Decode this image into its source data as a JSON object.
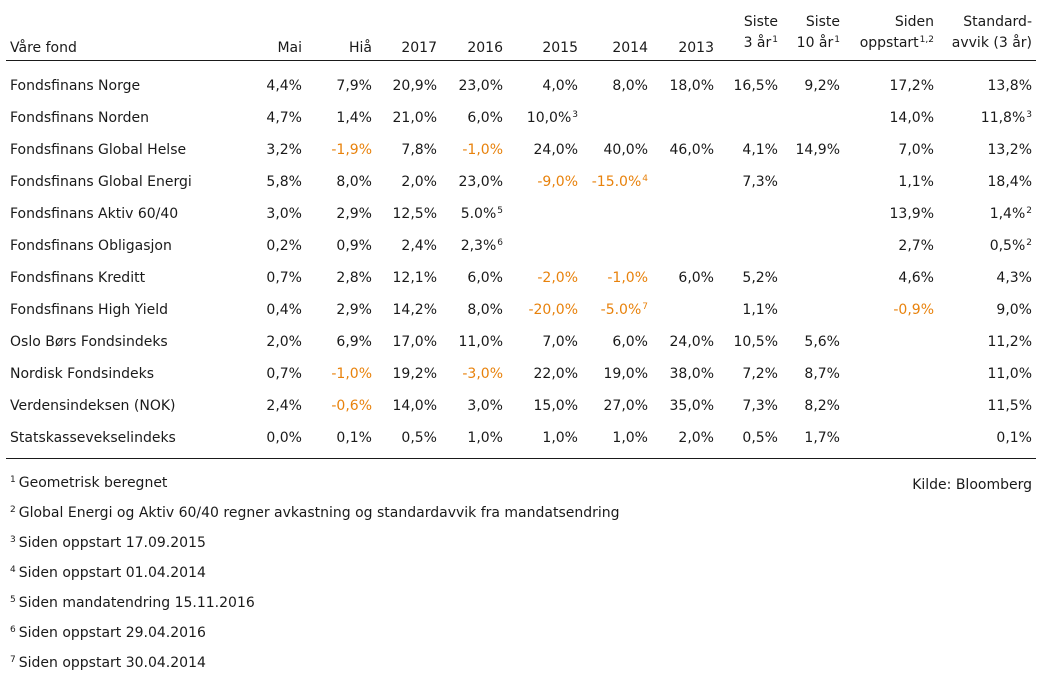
{
  "table": {
    "headers": {
      "name": "Våre fond",
      "mai": "Mai",
      "hia": "Hiå",
      "y2017": "2017",
      "y2016": "2016",
      "y2015": "2015",
      "y2014": "2014",
      "y2013": "2013",
      "siste3_l1": "Siste",
      "siste3_l2": "3 år",
      "siste3_sup": "1",
      "siste10_l1": "Siste",
      "siste10_l2": "10 år",
      "siste10_sup": "1",
      "siden_l1": "Siden",
      "siden_l2": "oppstart",
      "siden_sup": "1,2",
      "std_l1": "Standard-",
      "std_l2": "avvik (3 år)"
    },
    "rows": [
      {
        "name": "Fondsfinans Norge",
        "cells": [
          {
            "v": "4,4%"
          },
          {
            "v": "7,9%"
          },
          {
            "v": "20,9%"
          },
          {
            "v": "23,0%"
          },
          {
            "v": "4,0%"
          },
          {
            "v": "8,0%"
          },
          {
            "v": "18,0%"
          },
          {
            "v": "16,5%"
          },
          {
            "v": "9,2%"
          },
          {
            "v": "17,2%"
          },
          {
            "v": "13,8%"
          }
        ]
      },
      {
        "name": "Fondsfinans Norden",
        "cells": [
          {
            "v": "4,7%"
          },
          {
            "v": "1,4%"
          },
          {
            "v": "21,0%"
          },
          {
            "v": "6,0%"
          },
          {
            "v": "10,0%",
            "sup": "3"
          },
          {
            "v": ""
          },
          {
            "v": ""
          },
          {
            "v": ""
          },
          {
            "v": ""
          },
          {
            "v": "14,0%"
          },
          {
            "v": "11,8%",
            "sup": "3"
          }
        ]
      },
      {
        "name": "Fondsfinans Global Helse",
        "cells": [
          {
            "v": "3,2%"
          },
          {
            "v": "-1,9%",
            "neg": true
          },
          {
            "v": "7,8%"
          },
          {
            "v": "-1,0%",
            "neg": true
          },
          {
            "v": "24,0%"
          },
          {
            "v": "40,0%"
          },
          {
            "v": "46,0%"
          },
          {
            "v": "4,1%"
          },
          {
            "v": "14,9%"
          },
          {
            "v": "7,0%"
          },
          {
            "v": "13,2%"
          }
        ]
      },
      {
        "name": "Fondsfinans Global Energi",
        "cells": [
          {
            "v": "5,8%"
          },
          {
            "v": "8,0%"
          },
          {
            "v": "2,0%"
          },
          {
            "v": "23,0%"
          },
          {
            "v": "-9,0%",
            "neg": true
          },
          {
            "v": "-15.0%",
            "neg": true,
            "sup": "4"
          },
          {
            "v": ""
          },
          {
            "v": "7,3%"
          },
          {
            "v": ""
          },
          {
            "v": "1,1%"
          },
          {
            "v": "18,4%"
          }
        ]
      },
      {
        "name": "Fondsfinans Aktiv 60/40",
        "cells": [
          {
            "v": "3,0%"
          },
          {
            "v": "2,9%"
          },
          {
            "v": "12,5%"
          },
          {
            "v": "5.0%",
            "sup": "5"
          },
          {
            "v": ""
          },
          {
            "v": ""
          },
          {
            "v": ""
          },
          {
            "v": ""
          },
          {
            "v": ""
          },
          {
            "v": "13,9%"
          },
          {
            "v": "1,4%",
            "sup": "2"
          }
        ]
      },
      {
        "name": "Fondsfinans Obligasjon",
        "cells": [
          {
            "v": "0,2%"
          },
          {
            "v": "0,9%"
          },
          {
            "v": "2,4%"
          },
          {
            "v": "2,3%",
            "sup": "6"
          },
          {
            "v": ""
          },
          {
            "v": ""
          },
          {
            "v": ""
          },
          {
            "v": ""
          },
          {
            "v": ""
          },
          {
            "v": "2,7%"
          },
          {
            "v": "0,5%",
            "sup": "2"
          }
        ]
      },
      {
        "name": "Fondsfinans Kreditt",
        "cells": [
          {
            "v": "0,7%"
          },
          {
            "v": "2,8%"
          },
          {
            "v": "12,1%"
          },
          {
            "v": "6,0%"
          },
          {
            "v": "-2,0%",
            "neg": true
          },
          {
            "v": "-1,0%",
            "neg": true
          },
          {
            "v": "6,0%"
          },
          {
            "v": "5,2%"
          },
          {
            "v": ""
          },
          {
            "v": "4,6%"
          },
          {
            "v": "4,3%"
          }
        ]
      },
      {
        "name": "Fondsfinans High Yield",
        "cells": [
          {
            "v": "0,4%"
          },
          {
            "v": "2,9%"
          },
          {
            "v": "14,2%"
          },
          {
            "v": "8,0%"
          },
          {
            "v": "-20,0%",
            "neg": true
          },
          {
            "v": "-5.0%",
            "neg": true,
            "sup": "7"
          },
          {
            "v": ""
          },
          {
            "v": "1,1%"
          },
          {
            "v": ""
          },
          {
            "v": "-0,9%",
            "neg": true
          },
          {
            "v": "9,0%"
          }
        ]
      },
      {
        "name": "Oslo Børs Fondsindeks",
        "cells": [
          {
            "v": "2,0%"
          },
          {
            "v": "6,9%"
          },
          {
            "v": "17,0%"
          },
          {
            "v": "11,0%"
          },
          {
            "v": "7,0%"
          },
          {
            "v": "6,0%"
          },
          {
            "v": "24,0%"
          },
          {
            "v": "10,5%"
          },
          {
            "v": "5,6%"
          },
          {
            "v": ""
          },
          {
            "v": "11,2%"
          }
        ]
      },
      {
        "name": "Nordisk Fondsindeks",
        "cells": [
          {
            "v": "0,7%"
          },
          {
            "v": "-1,0%",
            "neg": true
          },
          {
            "v": "19,2%"
          },
          {
            "v": "-3,0%",
            "neg": true
          },
          {
            "v": "22,0%"
          },
          {
            "v": "19,0%"
          },
          {
            "v": "38,0%"
          },
          {
            "v": "7,2%"
          },
          {
            "v": "8,7%"
          },
          {
            "v": ""
          },
          {
            "v": "11,0%"
          }
        ]
      },
      {
        "name": "Verdensindeksen (NOK)",
        "cells": [
          {
            "v": "2,4%"
          },
          {
            "v": "-0,6%",
            "neg": true
          },
          {
            "v": "14,0%"
          },
          {
            "v": "3,0%"
          },
          {
            "v": "15,0%"
          },
          {
            "v": "27,0%"
          },
          {
            "v": "35,0%"
          },
          {
            "v": "7,3%"
          },
          {
            "v": "8,2%"
          },
          {
            "v": ""
          },
          {
            "v": "11,5%"
          }
        ]
      },
      {
        "name": "Statskassevekselindeks",
        "cells": [
          {
            "v": "0,0%"
          },
          {
            "v": "0,1%"
          },
          {
            "v": "0,5%"
          },
          {
            "v": "1,0%"
          },
          {
            "v": "1,0%"
          },
          {
            "v": "1,0%"
          },
          {
            "v": "2,0%"
          },
          {
            "v": "0,5%"
          },
          {
            "v": "1,7%"
          },
          {
            "v": ""
          },
          {
            "v": "0,1%"
          }
        ]
      }
    ]
  },
  "footnotes": [
    {
      "sup": "1",
      "text": "Geometrisk beregnet"
    },
    {
      "sup": "2",
      "text": "Global Energi og Aktiv 60/40 regner avkastning og standardavvik fra mandatsendring"
    },
    {
      "sup": "3",
      "text": "Siden oppstart 17.09.2015"
    },
    {
      "sup": "4",
      "text": "Siden oppstart 01.04.2014"
    },
    {
      "sup": "5",
      "text": "Siden mandatendring 15.11.2016"
    },
    {
      "sup": "6",
      "text": "Siden oppstart 29.04.2016"
    },
    {
      "sup": "7",
      "text": "Siden oppstart 30.04.2014"
    }
  ],
  "source": "Kilde: Bloomberg",
  "colors": {
    "negative": "#e8820c",
    "text": "#1a1a1a",
    "rule": "#1a1a1a"
  }
}
